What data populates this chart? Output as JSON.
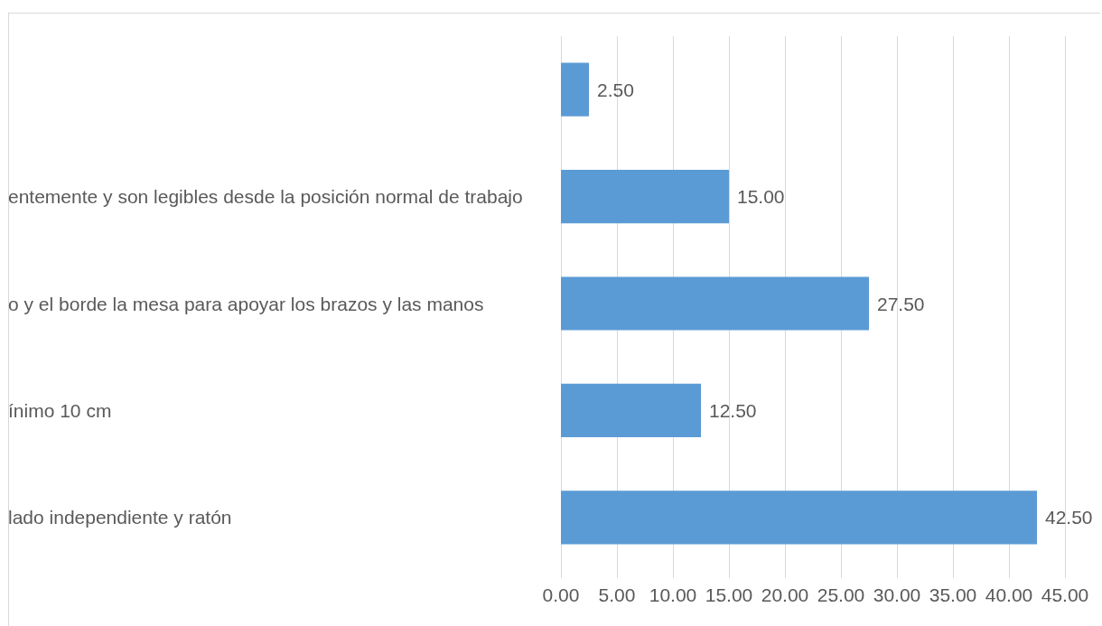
{
  "chart_data": {
    "type": "bar",
    "orientation": "horizontal",
    "categories": [
      null,
      "entemente y son legibles desde la posición normal de trabajo",
      "o y el borde la mesa para apoyar los brazos y las manos",
      "ínimo 10 cm",
      "lado independiente y ratón"
    ],
    "values": [
      2.5,
      15,
      27.5,
      12.5,
      42.5
    ],
    "color": "#5b9bd5",
    "value_labels": [
      "2.50",
      "15.00",
      "27.50",
      "12.50",
      "42.50"
    ],
    "xlim": [
      0,
      45
    ],
    "xticks": [
      {
        "value": 0,
        "label": "0.00"
      },
      {
        "value": 5,
        "label": "5.00"
      },
      {
        "value": 10,
        "label": "10.00"
      },
      {
        "value": 15,
        "label": "15.00"
      },
      {
        "value": 20,
        "label": "20.00"
      },
      {
        "value": 25,
        "label": "25.00"
      },
      {
        "value": 30,
        "label": "30.00"
      },
      {
        "value": 35,
        "label": "35.00"
      },
      {
        "value": 40,
        "label": "40.00"
      },
      {
        "value": 45,
        "label": "45.00"
      }
    ],
    "grid": "x"
  }
}
